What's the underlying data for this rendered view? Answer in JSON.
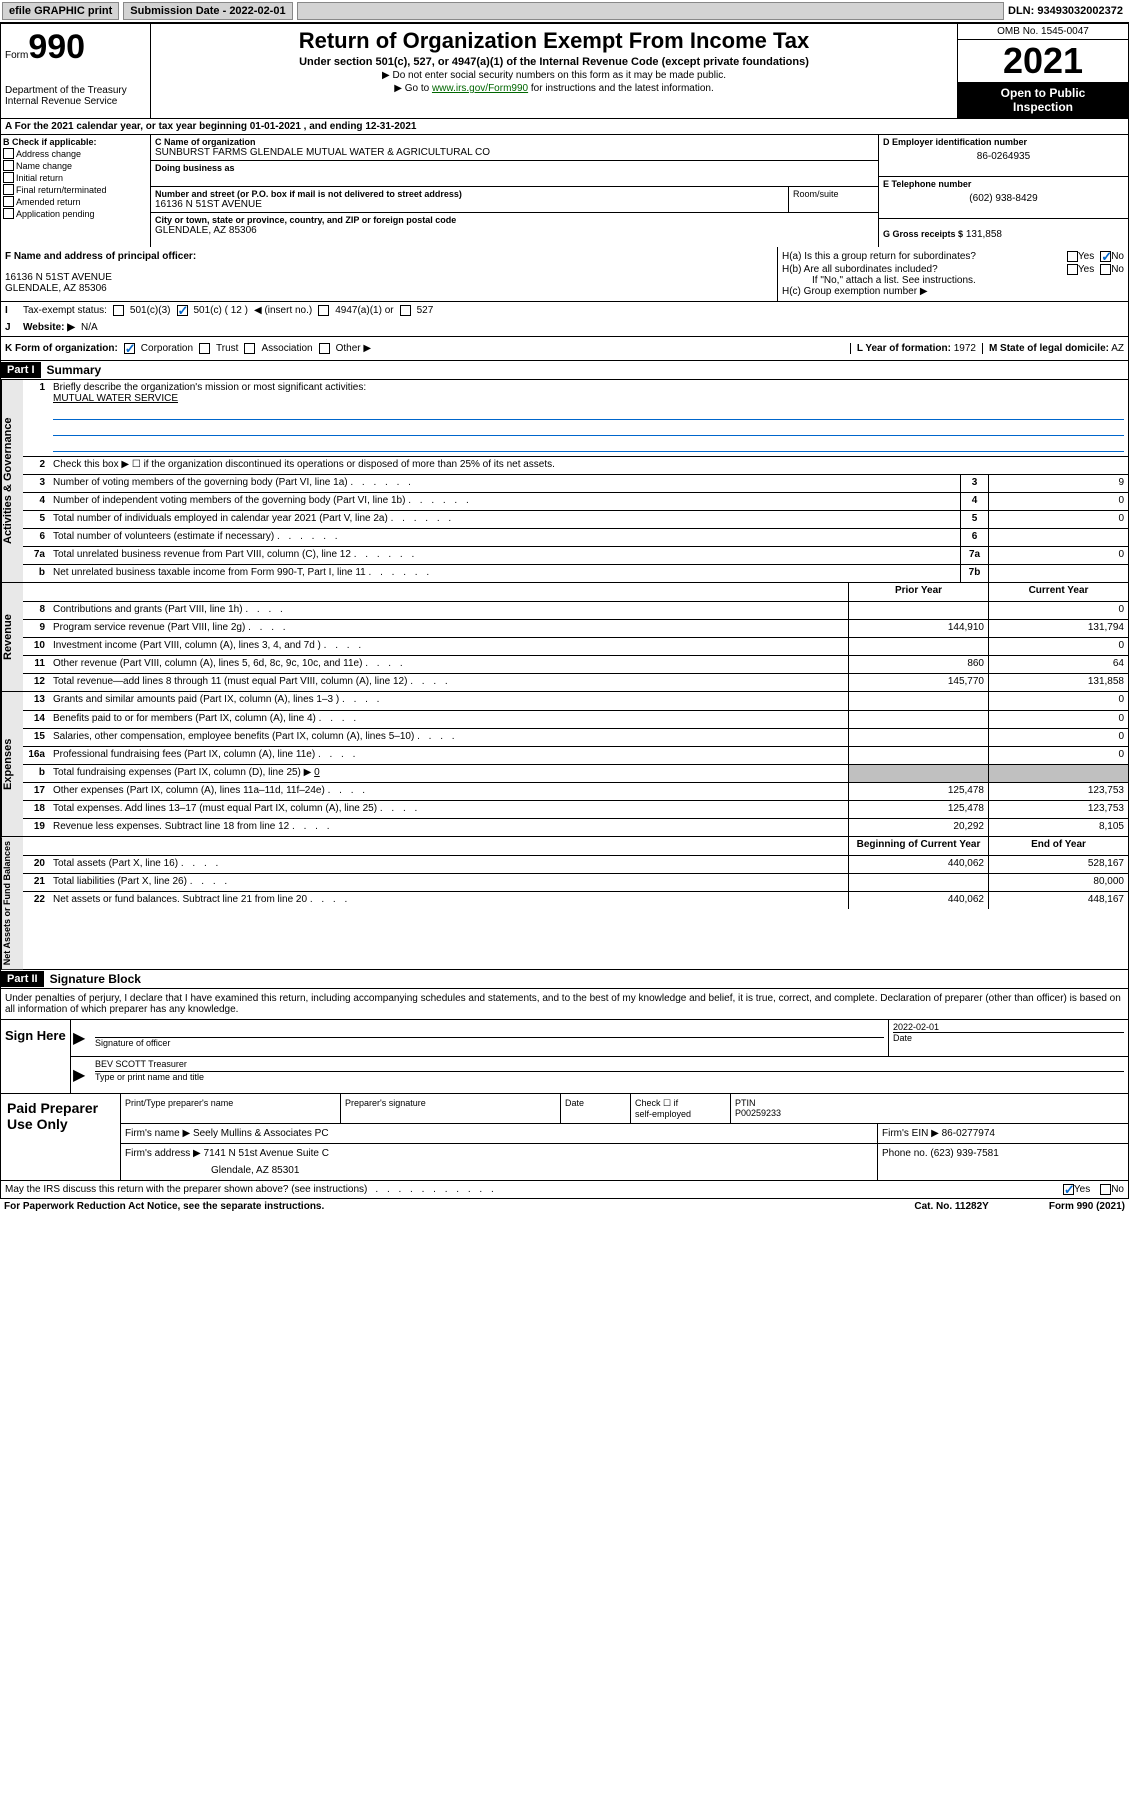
{
  "topbar": {
    "efile_label": "efile GRAPHIC print",
    "submission_label": "Submission Date - 2022-02-01",
    "dln": "DLN: 93493032002372"
  },
  "header": {
    "form_prefix": "Form",
    "form_number": "990",
    "dept": "Department of the Treasury",
    "irs": "Internal Revenue Service",
    "title": "Return of Organization Exempt From Income Tax",
    "subtitle": "Under section 501(c), 527, or 4947(a)(1) of the Internal Revenue Code (except private foundations)",
    "note1": "▶ Do not enter social security numbers on this form as it may be made public.",
    "note2_prefix": "▶ Go to ",
    "note2_link": "www.irs.gov/Form990",
    "note2_suffix": " for instructions and the latest information.",
    "omb": "OMB No. 1545-0047",
    "year": "2021",
    "inspection1": "Open to Public",
    "inspection2": "Inspection"
  },
  "line_a": "A For the 2021 calendar year, or tax year beginning 01-01-2021   , and ending 12-31-2021",
  "box_b": {
    "header": "B Check if applicable:",
    "items": [
      "Address change",
      "Name change",
      "Initial return",
      "Final return/terminated",
      "Amended return",
      "Application pending"
    ]
  },
  "box_c": {
    "name_label": "C Name of organization",
    "name": "SUNBURST FARMS GLENDALE MUTUAL WATER & AGRICULTURAL CO",
    "dba_label": "Doing business as",
    "street_label": "Number and street (or P.O. box if mail is not delivered to street address)",
    "suite_label": "Room/suite",
    "street": "16136 N 51ST AVENUE",
    "city_label": "City or town, state or province, country, and ZIP or foreign postal code",
    "city": "GLENDALE, AZ  85306"
  },
  "box_d": {
    "label": "D Employer identification number",
    "value": "86-0264935"
  },
  "box_e": {
    "label": "E Telephone number",
    "value": "(602) 938-8429"
  },
  "box_g": {
    "label": "G Gross receipts $",
    "value": "131,858"
  },
  "box_f": {
    "label": "F Name and address of principal officer:",
    "line1": "16136 N 51ST AVENUE",
    "line2": "GLENDALE, AZ  85306"
  },
  "box_h": {
    "a": "H(a)  Is this a group return for subordinates?",
    "b": "H(b)  Are all subordinates included?",
    "b_note": "If \"No,\" attach a list. See instructions.",
    "c": "H(c)  Group exemption number ▶",
    "yes": "Yes",
    "no": "No"
  },
  "row_i": {
    "label": "I",
    "text": "Tax-exempt status:",
    "opt1": "501(c)(3)",
    "opt2_a": "501(c) ( 12 ) ",
    "opt2_b": "◀ (insert no.)",
    "opt3": "4947(a)(1) or",
    "opt4": "527"
  },
  "row_j": {
    "label": "J",
    "text": "Website: ▶",
    "value": "N/A"
  },
  "row_k": {
    "label": "K Form of organization:",
    "opts": [
      "Corporation",
      "Trust",
      "Association",
      "Other ▶"
    ],
    "l_label": "L Year of formation:",
    "l_value": "1972",
    "m_label": "M State of legal domicile:",
    "m_value": "AZ"
  },
  "part1": {
    "header": "Part I",
    "title": "Summary"
  },
  "governance": {
    "label": "Activities & Governance",
    "l1_num": "1",
    "l1_text": "Briefly describe the organization's mission or most significant activities:",
    "l1_val": "MUTUAL WATER SERVICE",
    "l2_num": "2",
    "l2_text": "Check this box ▶ ☐  if the organization discontinued its operations or disposed of more than 25% of its net assets.",
    "lines": [
      {
        "n": "3",
        "t": "Number of voting members of the governing body (Part VI, line 1a)",
        "box": "3",
        "v": "9"
      },
      {
        "n": "4",
        "t": "Number of independent voting members of the governing body (Part VI, line 1b)",
        "box": "4",
        "v": "0"
      },
      {
        "n": "5",
        "t": "Total number of individuals employed in calendar year 2021 (Part V, line 2a)",
        "box": "5",
        "v": "0"
      },
      {
        "n": "6",
        "t": "Total number of volunteers (estimate if necessary)",
        "box": "6",
        "v": ""
      },
      {
        "n": "7a",
        "t": "Total unrelated business revenue from Part VIII, column (C), line 12",
        "box": "7a",
        "v": "0"
      },
      {
        "n": "b",
        "t": "Net unrelated business taxable income from Form 990-T, Part I, line 11",
        "box": "7b",
        "v": ""
      }
    ]
  },
  "cols": {
    "prior": "Prior Year",
    "current": "Current Year",
    "begin": "Beginning of Current Year",
    "end": "End of Year"
  },
  "revenue": {
    "label": "Revenue",
    "lines": [
      {
        "n": "8",
        "t": "Contributions and grants (Part VIII, line 1h)",
        "p": "",
        "c": "0"
      },
      {
        "n": "9",
        "t": "Program service revenue (Part VIII, line 2g)",
        "p": "144,910",
        "c": "131,794"
      },
      {
        "n": "10",
        "t": "Investment income (Part VIII, column (A), lines 3, 4, and 7d )",
        "p": "",
        "c": "0"
      },
      {
        "n": "11",
        "t": "Other revenue (Part VIII, column (A), lines 5, 6d, 8c, 9c, 10c, and 11e)",
        "p": "860",
        "c": "64"
      },
      {
        "n": "12",
        "t": "Total revenue—add lines 8 through 11 (must equal Part VIII, column (A), line 12)",
        "p": "145,770",
        "c": "131,858"
      }
    ]
  },
  "expenses": {
    "label": "Expenses",
    "lines": [
      {
        "n": "13",
        "t": "Grants and similar amounts paid (Part IX, column (A), lines 1–3 )",
        "p": "",
        "c": "0"
      },
      {
        "n": "14",
        "t": "Benefits paid to or for members (Part IX, column (A), line 4)",
        "p": "",
        "c": "0"
      },
      {
        "n": "15",
        "t": "Salaries, other compensation, employee benefits (Part IX, column (A), lines 5–10)",
        "p": "",
        "c": "0"
      },
      {
        "n": "16a",
        "t": "Professional fundraising fees (Part IX, column (A), line 11e)",
        "p": "",
        "c": "0"
      }
    ],
    "l16b_n": "b",
    "l16b_t": "Total fundraising expenses (Part IX, column (D), line 25) ▶",
    "l16b_v": "0",
    "lines2": [
      {
        "n": "17",
        "t": "Other expenses (Part IX, column (A), lines 11a–11d, 11f–24e)",
        "p": "125,478",
        "c": "123,753"
      },
      {
        "n": "18",
        "t": "Total expenses. Add lines 13–17 (must equal Part IX, column (A), line 25)",
        "p": "125,478",
        "c": "123,753"
      },
      {
        "n": "19",
        "t": "Revenue less expenses. Subtract line 18 from line 12",
        "p": "20,292",
        "c": "8,105"
      }
    ]
  },
  "netassets": {
    "label": "Net Assets or Fund Balances",
    "lines": [
      {
        "n": "20",
        "t": "Total assets (Part X, line 16)",
        "p": "440,062",
        "c": "528,167"
      },
      {
        "n": "21",
        "t": "Total liabilities (Part X, line 26)",
        "p": "",
        "c": "80,000"
      },
      {
        "n": "22",
        "t": "Net assets or fund balances. Subtract line 21 from line 20",
        "p": "440,062",
        "c": "448,167"
      }
    ]
  },
  "part2": {
    "header": "Part II",
    "title": "Signature Block"
  },
  "sig": {
    "decl": "Under penalties of perjury, I declare that I have examined this return, including accompanying schedules and statements, and to the best of my knowledge and belief, it is true, correct, and complete. Declaration of preparer (other than officer) is based on all information of which preparer has any knowledge.",
    "here": "Sign Here",
    "sig_officer": "Signature of officer",
    "date_label": "Date",
    "date_val": "2022-02-01",
    "name_title": "BEV SCOTT Treasurer",
    "type_label": "Type or print name and title"
  },
  "prep": {
    "label": "Paid Preparer Use Only",
    "h1": "Print/Type preparer's name",
    "h2": "Preparer's signature",
    "h3": "Date",
    "h4a": "Check ☐ if",
    "h4b": "self-employed",
    "h5": "PTIN",
    "ptin": "P00259233",
    "firm_name_l": "Firm's name    ▶",
    "firm_name": "Seely Mullins & Associates PC",
    "firm_ein_l": "Firm's EIN ▶",
    "firm_ein": "86-0277974",
    "firm_addr_l": "Firm's address ▶",
    "firm_addr1": "7141 N 51st Avenue Suite C",
    "firm_addr2": "Glendale, AZ  85301",
    "phone_l": "Phone no.",
    "phone": "(623) 939-7581"
  },
  "footer": {
    "discuss": "May the IRS discuss this return with the preparer shown above? (see instructions)",
    "yes": "Yes",
    "no": "No",
    "paperwork": "For Paperwork Reduction Act Notice, see the separate instructions.",
    "cat": "Cat. No. 11282Y",
    "form": "Form 990 (2021)"
  }
}
